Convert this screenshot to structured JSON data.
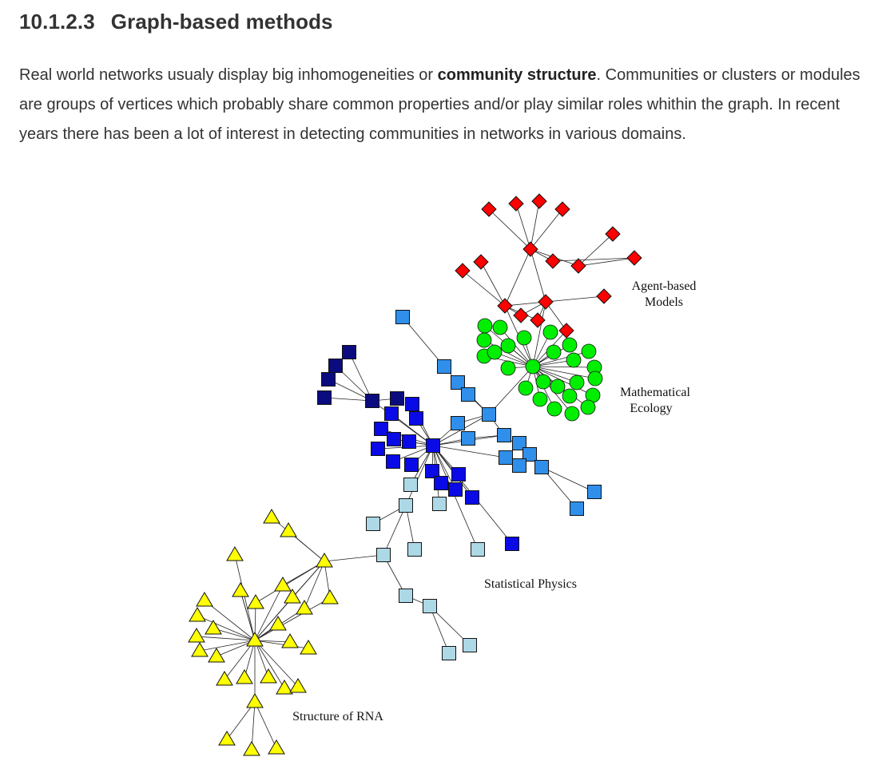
{
  "section": {
    "number": "10.1.2.3",
    "title": "Graph-based methods"
  },
  "paragraph": {
    "before": "Real world networks usualy display big inhomogeneities or ",
    "bold": "community structure",
    "after": ". Communities or clusters or modules are groups of vertices which probably share common properties and/or play similar roles whithin the graph. In recent years there has been a lot of interest in detecting communities in networks in various domains."
  },
  "figure": {
    "labels": {
      "agent_line1": "Agent-based",
      "agent_line2": "Models",
      "ecology_line1": "Mathematical",
      "ecology_line2": "Ecology",
      "physics": "Statistical Physics",
      "rna": "Structure of RNA"
    },
    "colors": {
      "agent": "#ff0000",
      "ecology": "#00ee00",
      "physics_light": "#add8e6",
      "physics_mid": "#2f8fea",
      "physics_blue": "#0a0ae6",
      "physics_navy": "#0b0b80",
      "rna": "#ffff00"
    }
  }
}
